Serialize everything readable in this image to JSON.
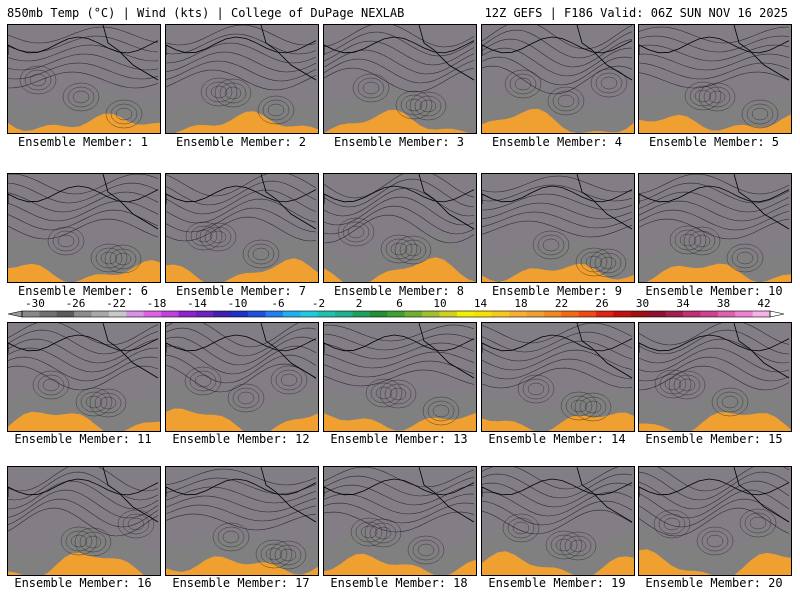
{
  "header": {
    "left": "850mb Temp (°C) | Wind (kts) | College of DuPage NEXLAB",
    "right": "12Z GEFS | F186 Valid: 06Z SUN NOV 16 2025"
  },
  "members": [
    "Ensemble Member: 1",
    "Ensemble Member: 2",
    "Ensemble Member: 3",
    "Ensemble Member: 4",
    "Ensemble Member: 5",
    "Ensemble Member: 6",
    "Ensemble Member: 7",
    "Ensemble Member: 8",
    "Ensemble Member: 9",
    "Ensemble Member: 10",
    "Ensemble Member: 11",
    "Ensemble Member: 12",
    "Ensemble Member: 13",
    "Ensemble Member: 14",
    "Ensemble Member: 15",
    "Ensemble Member: 16",
    "Ensemble Member: 17",
    "Ensemble Member: 18",
    "Ensemble Member: 19",
    "Ensemble Member: 20"
  ],
  "colorbar": {
    "labels": [
      "-30",
      "-26",
      "-22",
      "-18",
      "-14",
      "-10",
      "-6",
      "-2",
      "2",
      "6",
      "10",
      "14",
      "18",
      "22",
      "26",
      "30",
      "34",
      "38",
      "42"
    ],
    "colors": [
      "#888888",
      "#707070",
      "#5a5a5a",
      "#8c8c8c",
      "#a8a8a8",
      "#c8c8c8",
      "#d890e8",
      "#e060e8",
      "#c040e0",
      "#9020d0",
      "#7020c0",
      "#4020b0",
      "#2030c8",
      "#2050e0",
      "#2080f0",
      "#20b0f0",
      "#20c8e0",
      "#20c0b0",
      "#20b090",
      "#20a060",
      "#209030",
      "#40a030",
      "#70b030",
      "#a0c030",
      "#d0d020",
      "#f0f000",
      "#f8e000",
      "#f8c820",
      "#f8b030",
      "#f0a030",
      "#f08820",
      "#f06a10",
      "#f04810",
      "#e02010",
      "#c01010",
      "#a01010",
      "#901030",
      "#a02050",
      "#c03070",
      "#d04090",
      "#e060b0",
      "#f080d0",
      "#f8b0e8"
    ]
  },
  "panel_palette": {
    "cold": [
      "#808080",
      "#c050e0",
      "#8020d0",
      "#3030c0",
      "#2080f0",
      "#20c0c0",
      "#20a060",
      "#60b030",
      "#c0d020",
      "#f0f000",
      "#f8c820",
      "#f0a030"
    ]
  }
}
